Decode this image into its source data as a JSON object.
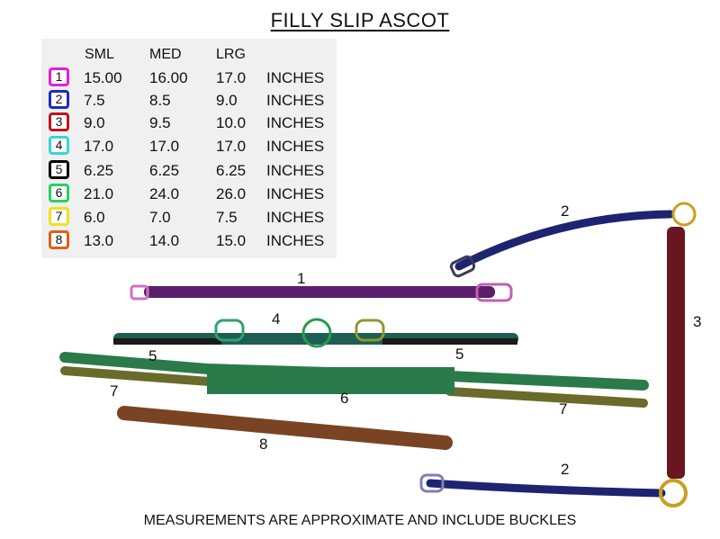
{
  "title": "FILLY SLIP ASCOT",
  "table": {
    "headers": [
      "SML",
      "MED",
      "LRG"
    ],
    "rows": [
      {
        "num": "1",
        "color": "#e020d8",
        "sml": "15.00",
        "med": "16.00",
        "lrg": "17.0",
        "unit": "INCHES"
      },
      {
        "num": "2",
        "color": "#1a2cc0",
        "sml": "7.5",
        "med": "8.5",
        "lrg": "9.0",
        "unit": "INCHES"
      },
      {
        "num": "3",
        "color": "#c0141c",
        "sml": "9.0",
        "med": "9.5",
        "lrg": "10.0",
        "unit": "INCHES"
      },
      {
        "num": "4",
        "color": "#36d8d0",
        "sml": "17.0",
        "med": "17.0",
        "lrg": "17.0",
        "unit": "INCHES"
      },
      {
        "num": "5",
        "color": "#000000",
        "sml": "6.25",
        "med": "6.25",
        "lrg": "6.25",
        "unit": "INCHES"
      },
      {
        "num": "6",
        "color": "#2ad060",
        "sml": "21.0",
        "med": "24.0",
        "lrg": "26.0",
        "unit": "INCHES"
      },
      {
        "num": "7",
        "color": "#f0e020",
        "sml": "6.0",
        "med": "7.0",
        "lrg": "7.5",
        "unit": "INCHES"
      },
      {
        "num": "8",
        "color": "#e06010",
        "sml": "13.0",
        "med": "14.0",
        "lrg": "15.0",
        "unit": "INCHES"
      }
    ]
  },
  "part_labels": {
    "p1": "1",
    "p2_top": "2",
    "p2_bottom": "2",
    "p3": "3",
    "p4": "4",
    "p5_left": "5",
    "p5_right": "5",
    "p6": "6",
    "p7_left": "7",
    "p7_right": "7",
    "p8": "8"
  },
  "strap_colors": {
    "purple": "#5a1f6a",
    "navy": "#1d2470",
    "maroon": "#6a1620",
    "teal": "#1f5e52",
    "green": "#2a7a4a",
    "olive": "#6a6a2a",
    "brown": "#7a4424",
    "brass": "#c8a020",
    "black": "#1a1a1a"
  },
  "footer": "MEASUREMENTS ARE APPROXIMATE AND INCLUDE BUCKLES"
}
